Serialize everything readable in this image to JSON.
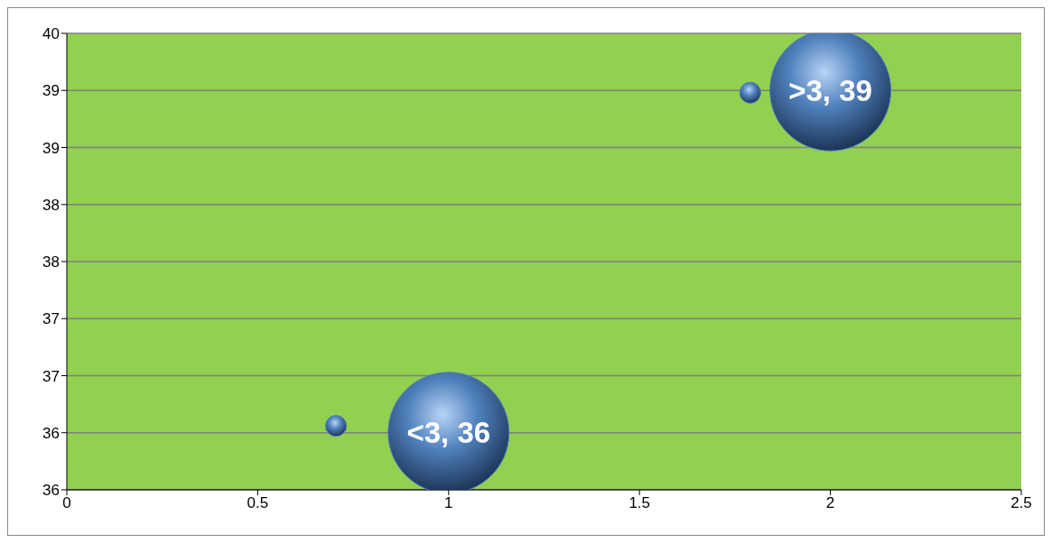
{
  "chart_data": {
    "type": "bubble",
    "x": [
      0.705,
      1,
      1.79,
      2
    ],
    "values": [
      36.56,
      36.5,
      39.48,
      39.5
    ],
    "sizes": [
      0.03,
      1,
      0.03,
      1
    ],
    "value_labels": [
      null,
      "<3, 36",
      null,
      ">3, 39"
    ],
    "color": "#4f81bd",
    "xlim": [
      0,
      2.5
    ],
    "xticks": [
      0,
      0.5,
      1,
      1.5,
      2,
      2.5
    ],
    "ylim": [
      36,
      40
    ],
    "yticks": [
      36,
      {
        "value": 36.5,
        "label": "36"
      },
      37,
      {
        "value": 37.5,
        "label": "37"
      },
      38,
      {
        "value": 38.5,
        "label": "38"
      },
      39,
      {
        "value": 39.5,
        "label": "39"
      },
      40
    ],
    "grid": "y"
  }
}
